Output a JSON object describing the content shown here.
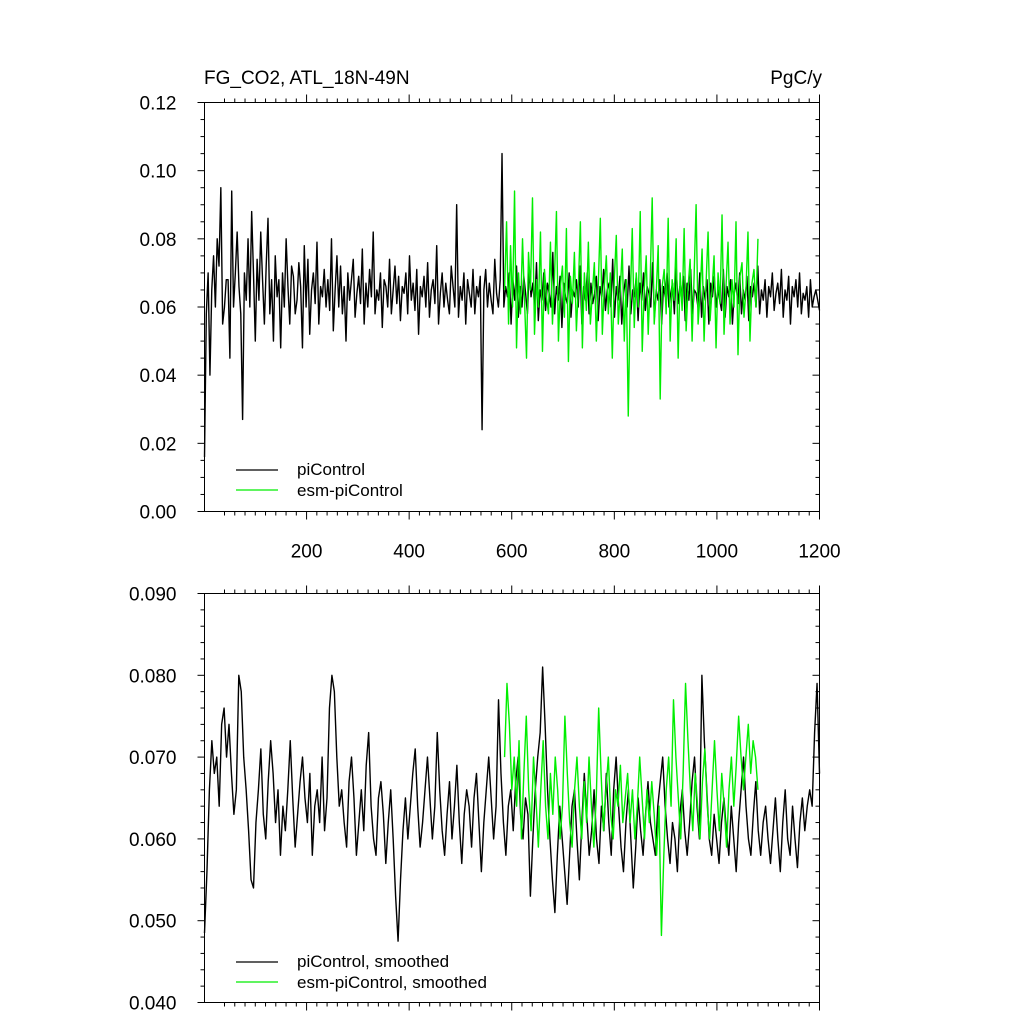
{
  "colors": {
    "pi": "#000000",
    "esm": "#00ee00",
    "axes": "#000000",
    "background": "#ffffff"
  },
  "chart_data": [
    {
      "type": "line",
      "title": "FG_CO2, ATL_18N-49N",
      "units": "PgC/y",
      "xlabel": "",
      "ylabel": "",
      "xlim": [
        1,
        1200
      ],
      "ylim": [
        0.0,
        0.12
      ],
      "xticks": [
        200,
        400,
        600,
        800,
        1000,
        1200
      ],
      "xtick_labels": [
        "200",
        "400",
        "600",
        "800",
        "1000",
        "1200"
      ],
      "yticks": [
        0.0,
        0.02,
        0.04,
        0.06,
        0.08,
        0.1,
        0.12
      ],
      "ytick_labels": [
        "0.00",
        "0.02",
        "0.04",
        "0.06",
        "0.08",
        "0.10",
        "0.12"
      ],
      "grid": false,
      "legend_position": "bottom-left",
      "series": [
        {
          "name": "piControl",
          "color": "#000000",
          "x_range": [
            1,
            1200
          ],
          "mean": 0.063,
          "spread": 0.011,
          "values": [
            0.016,
            0.058,
            0.07,
            0.04,
            0.065,
            0.075,
            0.06,
            0.08,
            0.072,
            0.095,
            0.055,
            0.06,
            0.068,
            0.068,
            0.045,
            0.094,
            0.06,
            0.07,
            0.082,
            0.066,
            0.058,
            0.027,
            0.07,
            0.062,
            0.08,
            0.06,
            0.088,
            0.07,
            0.05,
            0.074,
            0.062,
            0.082,
            0.068,
            0.055,
            0.072,
            0.086,
            0.058,
            0.068,
            0.05,
            0.075,
            0.063,
            0.068,
            0.048,
            0.07,
            0.06,
            0.08,
            0.066,
            0.055,
            0.072,
            0.069,
            0.058,
            0.062,
            0.073,
            0.066,
            0.048,
            0.078,
            0.06,
            0.074,
            0.052,
            0.065,
            0.07,
            0.061,
            0.079,
            0.055,
            0.066,
            0.063,
            0.071,
            0.06,
            0.068,
            0.059,
            0.08,
            0.053,
            0.065,
            0.075,
            0.06,
            0.072,
            0.058,
            0.066,
            0.05,
            0.07,
            0.062,
            0.068,
            0.074,
            0.057,
            0.064,
            0.069,
            0.061,
            0.077,
            0.055,
            0.067,
            0.06,
            0.071,
            0.063,
            0.082,
            0.058,
            0.065,
            0.062,
            0.07,
            0.054,
            0.068,
            0.066,
            0.06,
            0.074,
            0.058,
            0.065,
            0.072,
            0.061,
            0.069,
            0.056,
            0.066,
            0.064,
            0.07,
            0.058,
            0.075,
            0.062,
            0.067,
            0.059,
            0.071,
            0.052,
            0.066,
            0.063,
            0.069,
            0.06,
            0.073,
            0.057,
            0.065,
            0.068,
            0.061,
            0.078,
            0.055,
            0.064,
            0.07,
            0.06,
            0.067,
            0.062,
            0.058,
            0.072,
            0.066,
            0.06,
            0.09,
            0.057,
            0.066,
            0.062,
            0.07,
            0.055,
            0.068,
            0.064,
            0.06,
            0.071,
            0.058,
            0.066,
            0.063,
            0.069,
            0.024,
            0.065,
            0.071,
            0.06,
            0.067,
            0.062,
            0.058,
            0.074,
            0.064,
            0.06,
            0.068,
            0.105,
            0.06,
            0.066,
            0.063,
            0.07,
            0.055,
            0.068,
            0.062,
            0.072,
            0.057,
            0.066,
            0.06,
            0.069,
            0.064,
            0.058,
            0.071,
            0.063,
            0.067,
            0.06,
            0.073,
            0.056,
            0.065,
            0.062,
            0.07,
            0.059,
            0.067,
            0.064,
            0.06,
            0.076,
            0.058,
            0.066,
            0.062,
            0.069,
            0.054,
            0.067,
            0.063,
            0.061,
            0.07,
            0.057,
            0.065,
            0.063,
            0.068,
            0.06,
            0.072,
            0.055,
            0.066,
            0.062,
            0.07,
            0.058,
            0.067,
            0.061,
            0.064,
            0.069,
            0.056,
            0.066,
            0.063,
            0.071,
            0.059,
            0.065,
            0.067,
            0.06,
            0.074,
            0.057,
            0.066,
            0.062,
            0.069,
            0.055,
            0.064,
            0.068,
            0.06,
            0.072,
            0.058,
            0.065,
            0.063,
            0.069,
            0.056,
            0.067,
            0.062,
            0.07,
            0.059,
            0.066,
            0.064,
            0.06,
            0.073,
            0.057,
            0.065,
            0.062,
            0.068,
            0.055,
            0.066,
            0.063,
            0.07,
            0.06,
            0.064,
            0.067,
            0.058,
            0.072,
            0.061,
            0.066,
            0.063,
            0.069,
            0.056,
            0.067,
            0.062,
            0.071,
            0.058,
            0.065,
            0.064,
            0.06,
            0.07,
            0.057,
            0.066,
            0.062,
            0.068,
            0.055,
            0.067,
            0.063,
            0.069,
            0.06,
            0.065,
            0.062,
            0.059,
            0.071,
            0.057,
            0.066,
            0.063,
            0.068,
            0.055,
            0.064,
            0.067,
            0.061,
            0.07,
            0.058,
            0.065,
            0.062,
            0.069,
            0.056,
            0.066,
            0.063,
            0.067,
            0.06,
            0.072,
            0.058,
            0.065,
            0.062,
            0.068,
            0.057,
            0.066,
            0.063,
            0.07,
            0.059,
            0.064,
            0.067,
            0.061,
            0.071,
            0.057,
            0.065,
            0.062,
            0.069,
            0.055,
            0.066,
            0.063,
            0.068,
            0.06,
            0.07,
            0.058,
            0.064,
            0.062,
            0.066,
            0.057,
            0.068,
            0.06,
            0.063,
            0.065,
            0.062,
            0.059
          ]
        },
        {
          "name": "esm-piControl",
          "color": "#00ee00",
          "x_range": [
            586,
            1080
          ],
          "mean": 0.062,
          "spread": 0.012,
          "values": [
            0.065,
            0.085,
            0.055,
            0.078,
            0.06,
            0.094,
            0.048,
            0.07,
            0.058,
            0.08,
            0.062,
            0.045,
            0.076,
            0.065,
            0.092,
            0.052,
            0.068,
            0.06,
            0.082,
            0.047,
            0.071,
            0.063,
            0.058,
            0.079,
            0.055,
            0.068,
            0.088,
            0.05,
            0.066,
            0.072,
            0.057,
            0.083,
            0.044,
            0.069,
            0.061,
            0.076,
            0.053,
            0.066,
            0.085,
            0.048,
            0.07,
            0.059,
            0.079,
            0.055,
            0.064,
            0.073,
            0.05,
            0.067,
            0.086,
            0.052,
            0.066,
            0.075,
            0.058,
            0.07,
            0.045,
            0.068,
            0.081,
            0.055,
            0.065,
            0.077,
            0.05,
            0.068,
            0.028,
            0.062,
            0.083,
            0.054,
            0.07,
            0.06,
            0.088,
            0.047,
            0.065,
            0.075,
            0.052,
            0.068,
            0.092,
            0.055,
            0.064,
            0.078,
            0.033,
            0.066,
            0.071,
            0.058,
            0.086,
            0.05,
            0.068,
            0.062,
            0.08,
            0.045,
            0.07,
            0.059,
            0.083,
            0.053,
            0.066,
            0.074,
            0.05,
            0.069,
            0.09,
            0.055,
            0.064,
            0.077,
            0.05,
            0.067,
            0.082,
            0.056,
            0.065,
            0.075,
            0.048,
            0.07,
            0.061,
            0.087,
            0.052,
            0.066,
            0.079,
            0.055,
            0.068,
            0.06,
            0.085,
            0.046,
            0.069,
            0.073,
            0.057,
            0.065,
            0.082,
            0.05,
            0.067,
            0.071,
            0.06,
            0.08
          ]
        }
      ],
      "legend": [
        {
          "label": "piControl",
          "color": "#000000"
        },
        {
          "label": "esm-piControl",
          "color": "#00ee00"
        }
      ]
    },
    {
      "type": "line",
      "title": "",
      "xlabel": "",
      "ylabel": "",
      "xlim": [
        1,
        1200
      ],
      "ylim": [
        0.04,
        0.09
      ],
      "xticks": [
        200,
        400,
        600,
        800,
        1000,
        1200
      ],
      "yticks": [
        0.04,
        0.05,
        0.06,
        0.07,
        0.08,
        0.09
      ],
      "ytick_labels": [
        "0.040",
        "0.050",
        "0.060",
        "0.070",
        "0.080",
        "0.090"
      ],
      "grid": false,
      "legend_position": "bottom-left",
      "series": [
        {
          "name": "piControl, smoothed",
          "color": "#000000",
          "x_range": [
            1,
            1200
          ],
          "values": [
            0.0485,
            0.056,
            0.066,
            0.072,
            0.068,
            0.07,
            0.064,
            0.074,
            0.076,
            0.07,
            0.074,
            0.068,
            0.063,
            0.066,
            0.08,
            0.078,
            0.07,
            0.066,
            0.061,
            0.055,
            0.054,
            0.062,
            0.066,
            0.071,
            0.063,
            0.06,
            0.067,
            0.072,
            0.068,
            0.062,
            0.066,
            0.058,
            0.064,
            0.061,
            0.066,
            0.072,
            0.065,
            0.059,
            0.063,
            0.067,
            0.07,
            0.065,
            0.062,
            0.068,
            0.058,
            0.064,
            0.066,
            0.062,
            0.07,
            0.061,
            0.065,
            0.076,
            0.08,
            0.078,
            0.07,
            0.064,
            0.066,
            0.062,
            0.059,
            0.067,
            0.07,
            0.065,
            0.058,
            0.062,
            0.066,
            0.061,
            0.069,
            0.073,
            0.064,
            0.06,
            0.058,
            0.065,
            0.067,
            0.063,
            0.057,
            0.062,
            0.066,
            0.06,
            0.053,
            0.0475,
            0.055,
            0.061,
            0.065,
            0.06,
            0.064,
            0.068,
            0.071,
            0.064,
            0.059,
            0.062,
            0.066,
            0.07,
            0.065,
            0.06,
            0.064,
            0.073,
            0.066,
            0.061,
            0.058,
            0.063,
            0.067,
            0.06,
            0.064,
            0.069,
            0.062,
            0.057,
            0.063,
            0.066,
            0.064,
            0.059,
            0.065,
            0.068,
            0.062,
            0.056,
            0.062,
            0.066,
            0.07,
            0.065,
            0.06,
            0.064,
            0.077,
            0.068,
            0.062,
            0.058,
            0.064,
            0.066,
            0.061,
            0.067,
            0.07,
            0.063,
            0.06,
            0.065,
            0.063,
            0.053,
            0.06,
            0.066,
            0.07,
            0.073,
            0.081,
            0.074,
            0.066,
            0.06,
            0.055,
            0.051,
            0.058,
            0.064,
            0.06,
            0.056,
            0.052,
            0.058,
            0.064,
            0.066,
            0.06,
            0.055,
            0.062,
            0.068,
            0.063,
            0.058,
            0.061,
            0.066,
            0.06,
            0.057,
            0.064,
            0.061,
            0.068,
            0.062,
            0.058,
            0.066,
            0.07,
            0.064,
            0.059,
            0.056,
            0.062,
            0.066,
            0.06,
            0.054,
            0.059,
            0.065,
            0.061,
            0.058,
            0.063,
            0.067,
            0.062,
            0.06,
            0.058,
            0.064,
            0.067,
            0.07,
            0.064,
            0.06,
            0.057,
            0.062,
            0.06,
            0.056,
            0.063,
            0.066,
            0.061,
            0.058,
            0.062,
            0.067,
            0.07,
            0.064,
            0.06,
            0.08,
            0.072,
            0.066,
            0.06,
            0.058,
            0.063,
            0.06,
            0.057,
            0.062,
            0.065,
            0.061,
            0.058,
            0.064,
            0.06,
            0.056,
            0.062,
            0.066,
            0.07,
            0.064,
            0.06,
            0.058,
            0.063,
            0.067,
            0.061,
            0.058,
            0.062,
            0.064,
            0.06,
            0.057,
            0.061,
            0.065,
            0.06,
            0.056,
            0.062,
            0.066,
            0.06,
            0.058,
            0.064,
            0.06,
            0.0565,
            0.062,
            0.065,
            0.061,
            0.064,
            0.066,
            0.064,
            0.073,
            0.079,
            0.068
          ]
        },
        {
          "name": "esm-piControl, smoothed",
          "color": "#00ee00",
          "x_range": [
            586,
            1080
          ],
          "values": [
            0.07,
            0.079,
            0.074,
            0.066,
            0.07,
            0.064,
            0.072,
            0.06,
            0.068,
            0.075,
            0.066,
            0.061,
            0.07,
            0.065,
            0.059,
            0.066,
            0.072,
            0.064,
            0.06,
            0.068,
            0.063,
            0.07,
            0.066,
            0.06,
            0.064,
            0.075,
            0.068,
            0.062,
            0.059,
            0.066,
            0.07,
            0.064,
            0.06,
            0.067,
            0.062,
            0.07,
            0.064,
            0.059,
            0.065,
            0.076,
            0.068,
            0.061,
            0.066,
            0.07,
            0.063,
            0.06,
            0.066,
            0.064,
            0.069,
            0.062,
            0.065,
            0.068,
            0.062,
            0.066,
            0.06,
            0.064,
            0.07,
            0.065,
            0.06,
            0.066,
            0.062,
            0.067,
            0.063,
            0.058,
            0.064,
            0.0482,
            0.058,
            0.066,
            0.07,
            0.064,
            0.077,
            0.07,
            0.065,
            0.06,
            0.068,
            0.079,
            0.072,
            0.066,
            0.061,
            0.068,
            0.064,
            0.06,
            0.067,
            0.071,
            0.064,
            0.06,
            0.066,
            0.072,
            0.066,
            0.061,
            0.068,
            0.064,
            0.059,
            0.066,
            0.07,
            0.064,
            0.069,
            0.075,
            0.07,
            0.066,
            0.07,
            0.074,
            0.068,
            0.072,
            0.07,
            0.066
          ]
        }
      ],
      "legend": [
        {
          "label": "piControl, smoothed",
          "color": "#000000"
        },
        {
          "label": "esm-piControl, smoothed",
          "color": "#00ee00"
        }
      ]
    }
  ]
}
